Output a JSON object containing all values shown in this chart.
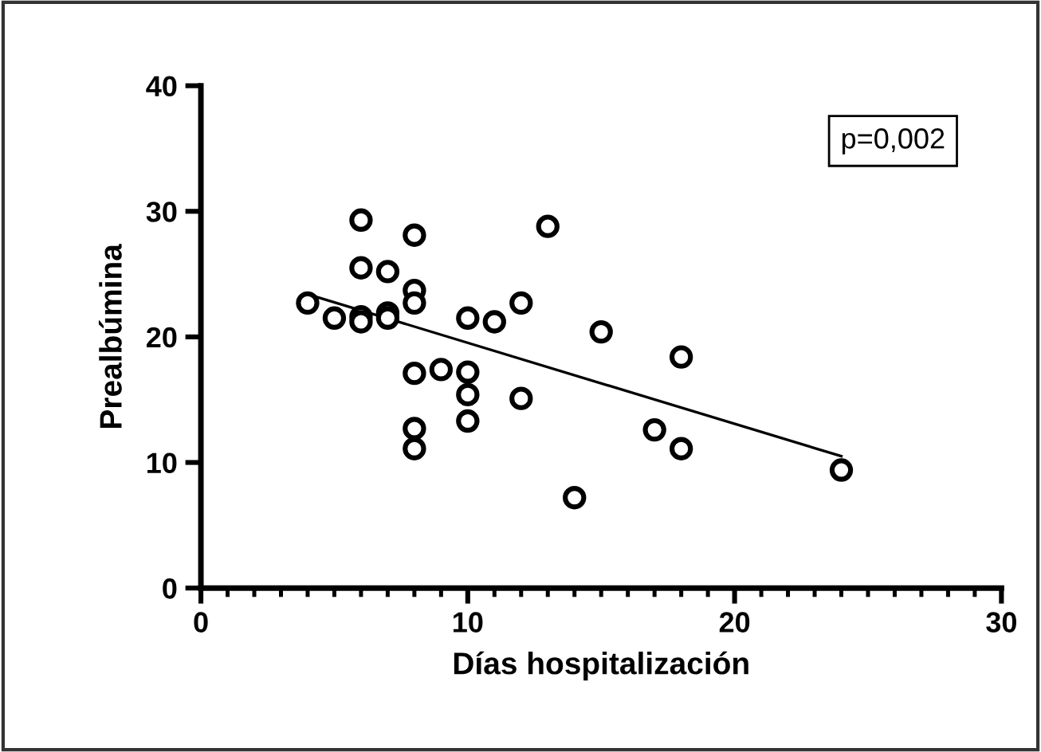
{
  "chart_data": {
    "type": "scatter",
    "xlabel": "Días hospitalización",
    "ylabel": "Prealbúmina",
    "annotations": [
      "p=0,002"
    ],
    "xlim": [
      0,
      30
    ],
    "xticks": [
      0,
      10,
      20,
      30
    ],
    "ylim": [
      0,
      40
    ],
    "yticks": [
      0,
      10,
      20,
      30,
      40
    ],
    "grid": false,
    "legend": false,
    "marker": "circle",
    "series": [
      {
        "color": "#000000",
        "x": [
          4,
          5,
          6,
          6,
          6,
          6,
          7,
          7,
          7,
          8,
          8,
          8,
          8,
          8,
          8,
          9,
          10,
          10,
          10,
          10,
          11,
          12,
          12,
          13,
          14,
          15,
          17,
          18,
          18,
          24
        ],
        "values": [
          22.7,
          21.5,
          29.3,
          25.5,
          21.6,
          21.2,
          25.2,
          21.9,
          21.5,
          28.1,
          23.7,
          22.7,
          17.1,
          12.7,
          11.1,
          17.4,
          21.5,
          17.2,
          15.4,
          13.3,
          21.2,
          22.7,
          15.1,
          28.8,
          7.2,
          20.4,
          12.6,
          18.4,
          11.1,
          9.4
        ]
      },
      {
        "type": "line",
        "color": "#000000",
        "x": [
          4,
          24
        ],
        "values": [
          23.4,
          10.5
        ],
        "marker": "none",
        "line_style": "solid"
      }
    ]
  }
}
